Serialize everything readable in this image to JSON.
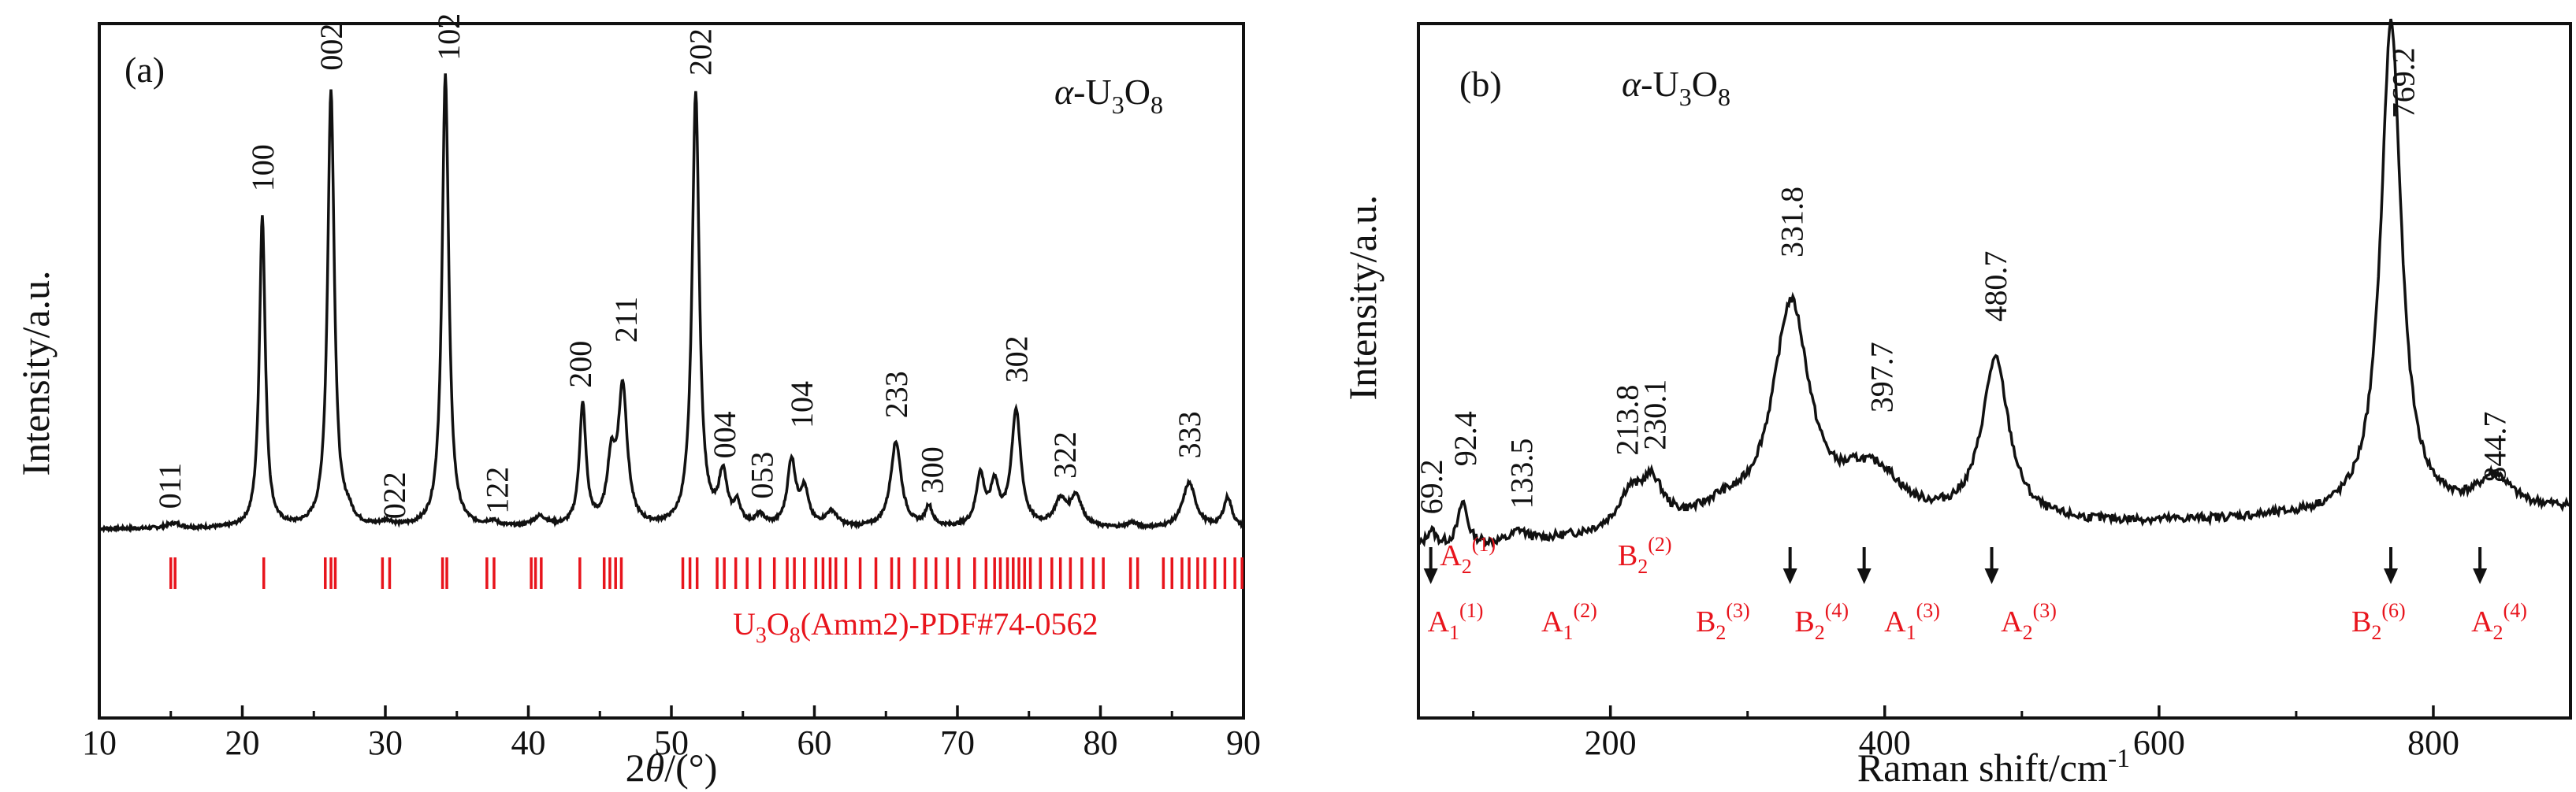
{
  "chart_data": [
    {
      "type": "line",
      "panel_label": "(a)",
      "phase_label": {
        "alpha": "α",
        "sep": "-U",
        "sub1": "3",
        "mid": "O",
        "sub2": "8"
      },
      "xlabel": {
        "main": "2",
        "theta": "θ",
        "unit": "/(°)"
      },
      "ylabel": "Intensity/a.u.",
      "xlim": [
        10,
        90
      ],
      "xticks": [
        "10",
        "20",
        "30",
        "40",
        "50",
        "60",
        "70",
        "80",
        "90"
      ],
      "grid": false,
      "baseline": 0.06,
      "peaks": [
        {
          "x": 15.2,
          "h": 0.01,
          "w": 0.6
        },
        {
          "x": 21.4,
          "h": 0.62,
          "w": 0.25
        },
        {
          "x": 26.2,
          "h": 0.87,
          "w": 0.28
        },
        {
          "x": 27.4,
          "h": 0.02,
          "w": 0.4
        },
        {
          "x": 30.1,
          "h": 0.01,
          "w": 0.5
        },
        {
          "x": 34.2,
          "h": 0.9,
          "w": 0.28
        },
        {
          "x": 37.5,
          "h": 0.01,
          "w": 0.5
        },
        {
          "x": 40.8,
          "h": 0.02,
          "w": 0.6
        },
        {
          "x": 43.8,
          "h": 0.24,
          "w": 0.28
        },
        {
          "x": 45.8,
          "h": 0.12,
          "w": 0.35
        },
        {
          "x": 46.6,
          "h": 0.27,
          "w": 0.38
        },
        {
          "x": 51.7,
          "h": 0.86,
          "w": 0.3
        },
        {
          "x": 53.6,
          "h": 0.1,
          "w": 0.35
        },
        {
          "x": 54.6,
          "h": 0.04,
          "w": 0.3
        },
        {
          "x": 56.2,
          "h": 0.02,
          "w": 0.4
        },
        {
          "x": 58.4,
          "h": 0.13,
          "w": 0.35
        },
        {
          "x": 59.3,
          "h": 0.07,
          "w": 0.35
        },
        {
          "x": 61.2,
          "h": 0.03,
          "w": 0.5
        },
        {
          "x": 65.7,
          "h": 0.17,
          "w": 0.45
        },
        {
          "x": 68.0,
          "h": 0.04,
          "w": 0.3
        },
        {
          "x": 71.6,
          "h": 0.1,
          "w": 0.35
        },
        {
          "x": 72.6,
          "h": 0.08,
          "w": 0.35
        },
        {
          "x": 74.1,
          "h": 0.23,
          "w": 0.4
        },
        {
          "x": 77.2,
          "h": 0.05,
          "w": 0.5
        },
        {
          "x": 78.3,
          "h": 0.06,
          "w": 0.5
        },
        {
          "x": 82.2,
          "h": 0.01,
          "w": 0.4
        },
        {
          "x": 86.2,
          "h": 0.09,
          "w": 0.55
        },
        {
          "x": 88.9,
          "h": 0.06,
          "w": 0.35
        }
      ],
      "peak_labels": [
        {
          "text": "011",
          "x": 14.9,
          "y": 0.1
        },
        {
          "text": "100",
          "x": 21.4,
          "y": 0.73
        },
        {
          "text": "002",
          "x": 26.2,
          "y": 0.97
        },
        {
          "text": "022",
          "x": 30.6,
          "y": 0.08
        },
        {
          "text": "102",
          "x": 34.4,
          "y": 0.99
        },
        {
          "text": "122",
          "x": 37.8,
          "y": 0.09
        },
        {
          "text": "200",
          "x": 43.6,
          "y": 0.34
        },
        {
          "text": "211",
          "x": 46.8,
          "y": 0.43
        },
        {
          "text": "202",
          "x": 52.0,
          "y": 0.96
        },
        {
          "text": "004",
          "x": 53.7,
          "y": 0.2
        },
        {
          "text": "053",
          "x": 56.3,
          "y": 0.12
        },
        {
          "text": "104",
          "x": 59.1,
          "y": 0.26
        },
        {
          "text": "233",
          "x": 65.7,
          "y": 0.28
        },
        {
          "text": "300",
          "x": 68.2,
          "y": 0.13
        },
        {
          "text": "302",
          "x": 74.1,
          "y": 0.35
        },
        {
          "text": "322",
          "x": 77.5,
          "y": 0.16
        },
        {
          "text": "333",
          "x": 86.2,
          "y": 0.2
        }
      ],
      "reference": {
        "label_parts": {
          "u": "U",
          "s1": "3",
          "o": "O",
          "s2": "8",
          "rest": "(Amm2)-PDF#74-0562"
        },
        "color": "#e8141c",
        "positions": [
          15.0,
          15.3,
          21.5,
          25.8,
          26.2,
          26.5,
          29.8,
          30.3,
          34.0,
          34.3,
          37.1,
          37.6,
          40.2,
          40.5,
          40.9,
          43.6,
          45.3,
          45.7,
          46.1,
          46.5,
          50.8,
          51.3,
          51.8,
          53.2,
          53.7,
          54.5,
          55.3,
          56.2,
          57.2,
          58.1,
          58.6,
          59.3,
          60.1,
          60.6,
          61.1,
          61.5,
          62.2,
          63.2,
          64.3,
          65.4,
          65.9,
          67.0,
          67.8,
          68.5,
          69.3,
          70.1,
          71.2,
          72.0,
          72.6,
          73.0,
          73.5,
          73.9,
          74.3,
          74.7,
          75.1,
          75.8,
          76.6,
          77.2,
          77.9,
          78.7,
          79.5,
          80.2,
          82.1,
          82.6,
          84.4,
          85.0,
          85.7,
          86.2,
          86.8,
          87.3,
          88.0,
          88.7,
          89.4,
          89.9
        ]
      }
    },
    {
      "type": "line",
      "panel_label": "(b)",
      "phase_label": {
        "alpha": "α",
        "sep": "-U",
        "sub1": "3",
        "mid": "O",
        "sub2": "8"
      },
      "xlabel": {
        "main": "Raman shift/cm",
        "sup": "-1"
      },
      "ylabel": "Intensity/a.u.",
      "xlim": [
        60,
        900
      ],
      "xticks": [
        "200",
        "400",
        "600",
        "800"
      ],
      "grid": false,
      "peaks": [
        {
          "x": 69.2,
          "h": 0.03,
          "w": 4
        },
        {
          "x": 92.4,
          "h": 0.08,
          "w": 4
        },
        {
          "x": 133.5,
          "h": 0.02,
          "w": 6
        },
        {
          "x": 213.8,
          "h": 0.06,
          "w": 10
        },
        {
          "x": 230.1,
          "h": 0.08,
          "w": 10
        },
        {
          "x": 280.0,
          "h": 0.02,
          "w": 15
        },
        {
          "x": 331.8,
          "h": 0.4,
          "w": 16
        },
        {
          "x": 397.7,
          "h": 0.06,
          "w": 18
        },
        {
          "x": 380.0,
          "h": 0.04,
          "w": 15
        },
        {
          "x": 480.7,
          "h": 0.3,
          "w": 12
        },
        {
          "x": 769.2,
          "h": 0.92,
          "w": 9
        },
        {
          "x": 844.7,
          "h": 0.06,
          "w": 14
        }
      ],
      "peak_labels": [
        {
          "text": "69.2",
          "x": 69.2,
          "y": 0.12
        },
        {
          "text": "92.4",
          "x": 94.0,
          "y": 0.21
        },
        {
          "text": "133.5",
          "x": 135.0,
          "y": 0.13
        },
        {
          "text": "213.8",
          "x": 212.0,
          "y": 0.23
        },
        {
          "text": "230.1",
          "x": 232.0,
          "y": 0.24
        },
        {
          "text": "331.8",
          "x": 332.0,
          "y": 0.6
        },
        {
          "text": "397.7",
          "x": 397.7,
          "y": 0.31
        },
        {
          "text": "480.7",
          "x": 480.7,
          "y": 0.48
        },
        {
          "text": "769.2",
          "x": 778.0,
          "y": 0.86
        },
        {
          "text": "844.7",
          "x": 844.7,
          "y": 0.18
        }
      ],
      "mode_assignments": [
        {
          "base": "A",
          "sub": "2",
          "sup": "(1)",
          "x": 96,
          "row": "upper"
        },
        {
          "base": "B",
          "sub": "2",
          "sup": "(2)",
          "x": 225,
          "row": "upper"
        },
        {
          "base": "A",
          "sub": "1",
          "sup": "(1)",
          "x": 87,
          "row": "lower"
        },
        {
          "base": "A",
          "sub": "1",
          "sup": "(2)",
          "x": 170,
          "row": "lower"
        },
        {
          "base": "B",
          "sub": "2",
          "sup": "(3)",
          "x": 282,
          "row": "lower"
        },
        {
          "base": "B",
          "sub": "2",
          "sup": "(4)",
          "x": 354,
          "row": "lower"
        },
        {
          "base": "A",
          "sub": "1",
          "sup": "(3)",
          "x": 420,
          "row": "lower"
        },
        {
          "base": "A",
          "sub": "2",
          "sup": "(3)",
          "x": 505,
          "row": "lower"
        },
        {
          "base": "B",
          "sub": "2",
          "sup": "(6)",
          "x": 760,
          "row": "lower"
        },
        {
          "base": "A",
          "sub": "2",
          "sup": "(4)",
          "x": 848,
          "row": "lower"
        }
      ],
      "arrows": [
        69,
        331,
        385,
        478,
        769,
        834
      ],
      "label_color": "#e8141c"
    }
  ]
}
